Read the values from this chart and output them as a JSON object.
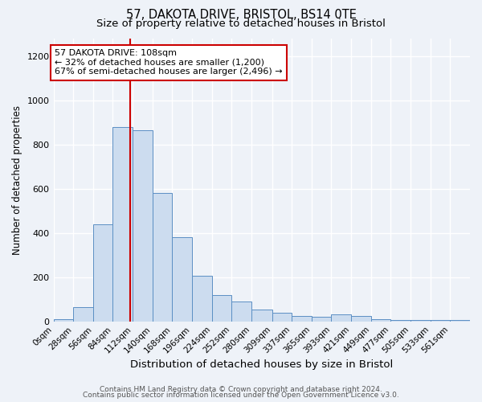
{
  "title1": "57, DAKOTA DRIVE, BRISTOL, BS14 0TE",
  "title2": "Size of property relative to detached houses in Bristol",
  "xlabel": "Distribution of detached houses by size in Bristol",
  "ylabel": "Number of detached properties",
  "annotation_line1": "57 DAKOTA DRIVE: 108sqm",
  "annotation_line2": "← 32% of detached houses are smaller (1,200)",
  "annotation_line3": "67% of semi-detached houses are larger (2,496) →",
  "property_size": 108,
  "bin_edges": [
    0,
    28,
    56,
    84,
    112,
    140,
    168,
    196,
    224,
    252,
    280,
    309,
    337,
    365,
    393,
    421,
    449,
    477,
    505,
    533,
    561,
    589
  ],
  "bar_heights": [
    10,
    65,
    440,
    880,
    865,
    580,
    380,
    205,
    120,
    90,
    55,
    40,
    25,
    20,
    30,
    25,
    10,
    8,
    5,
    5,
    5
  ],
  "bar_color": "#ccdcef",
  "bar_edge_color": "#5b8fc4",
  "red_line_color": "#cc0000",
  "annotation_box_facecolor": "#ffffff",
  "annotation_box_edgecolor": "#cc0000",
  "tick_labels": [
    "0sqm",
    "28sqm",
    "56sqm",
    "84sqm",
    "112sqm",
    "140sqm",
    "168sqm",
    "196sqm",
    "224sqm",
    "252sqm",
    "280sqm",
    "309sqm",
    "337sqm",
    "365sqm",
    "393sqm",
    "421sqm",
    "449sqm",
    "477sqm",
    "505sqm",
    "533sqm",
    "561sqm"
  ],
  "yticks": [
    0,
    200,
    400,
    600,
    800,
    1000,
    1200
  ],
  "ylim": [
    0,
    1280
  ],
  "xlim": [
    0,
    589
  ],
  "footer1": "Contains HM Land Registry data © Crown copyright and database right 2024.",
  "footer2": "Contains public sector information licensed under the Open Government Licence v3.0.",
  "bg_color": "#eef2f8",
  "title1_fontsize": 10.5,
  "title2_fontsize": 9.5,
  "xlabel_fontsize": 9.5,
  "ylabel_fontsize": 8.5,
  "tick_fontsize": 7.5,
  "annotation_fontsize": 8,
  "footer_fontsize": 6.5,
  "grid_color": "#ffffff",
  "grid_linewidth": 1.0
}
